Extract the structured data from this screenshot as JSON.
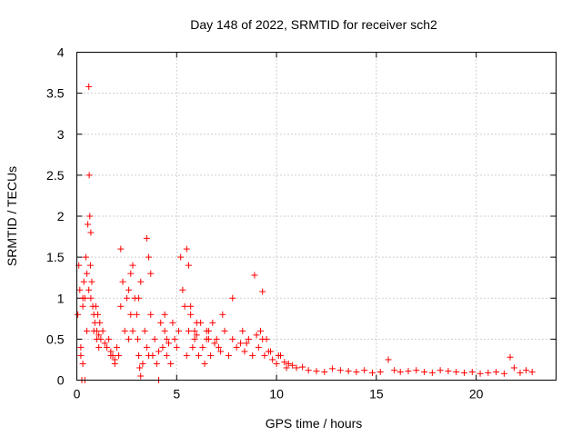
{
  "chart_data": {
    "type": "scatter",
    "title": "Day 148 of 2022, SRMTID for receiver sch2",
    "xlabel": "GPS time / hours",
    "ylabel": "SRMTID / TECUs",
    "xlim": [
      0,
      24
    ],
    "ylim": [
      0,
      4
    ],
    "x_ticks": [
      0,
      5,
      10,
      15,
      20
    ],
    "x_tick_labels": [
      "0",
      "5",
      "10",
      "15",
      "20"
    ],
    "y_ticks": [
      0,
      0.5,
      1,
      1.5,
      2,
      2.5,
      3,
      3.5,
      4
    ],
    "y_tick_labels": [
      "0",
      "0.5",
      "1",
      "1.5",
      "2",
      "2.5",
      "3",
      "3.5",
      "4"
    ],
    "grid": true,
    "marker": "+",
    "series": [
      {
        "name": "SRMTID",
        "color": "#ff0000",
        "x": [
          0.05,
          0.1,
          0.15,
          0.2,
          0.25,
          0.3,
          0.35,
          0.4,
          0.45,
          0.5,
          0.55,
          0.6,
          0.62,
          0.65,
          0.68,
          0.7,
          0.75,
          0.8,
          0.85,
          0.9,
          0.95,
          1.0,
          1.05,
          1.1,
          1.15,
          1.2,
          1.3,
          1.4,
          1.5,
          1.6,
          1.7,
          1.8,
          1.9,
          2.0,
          2.1,
          2.2,
          2.3,
          2.4,
          2.5,
          2.6,
          2.7,
          2.8,
          2.9,
          3.0,
          3.05,
          3.1,
          3.15,
          3.2,
          3.3,
          3.4,
          3.5,
          3.6,
          3.7,
          3.8,
          3.9,
          4.0,
          4.1,
          4.2,
          4.3,
          4.4,
          4.5,
          4.6,
          4.7,
          4.8,
          4.9,
          5.0,
          5.1,
          5.2,
          5.3,
          5.4,
          5.5,
          5.6,
          5.7,
          5.8,
          5.9,
          6.0,
          6.1,
          6.2,
          6.3,
          6.4,
          6.5,
          6.6,
          6.7,
          6.8,
          6.9,
          7.0,
          7.2,
          7.4,
          7.6,
          7.8,
          8.0,
          8.2,
          8.4,
          8.6,
          8.8,
          9.0,
          9.1,
          9.2,
          9.3,
          9.4,
          9.6,
          9.8,
          10.0,
          10.2,
          10.4,
          10.6,
          10.8,
          11.0,
          11.3,
          11.6,
          12.0,
          12.4,
          12.8,
          13.2,
          13.6,
          14.0,
          14.4,
          14.8,
          15.2,
          15.6,
          15.9,
          16.2,
          16.6,
          17.0,
          17.4,
          17.8,
          18.2,
          18.6,
          19.0,
          19.4,
          19.8,
          20.2,
          20.6,
          21.0,
          21.4,
          21.7,
          21.9,
          22.2,
          22.5,
          22.8,
          0.3,
          0.5,
          0.6,
          0.7,
          2.2,
          3.1,
          3.2,
          4.1,
          5.5,
          5.6,
          5.7,
          7.8,
          8.9,
          9.3,
          3.5,
          3.6,
          3.7,
          0.2,
          0.3,
          0.4,
          1.0,
          1.1,
          4.4,
          4.5,
          5.9,
          6.0,
          6.5,
          6.6,
          7.1,
          7.3,
          8.3,
          8.5,
          9.5,
          9.7,
          10.1,
          10.5,
          2.6,
          2.7,
          2.8,
          1.9,
          1.7,
          0.85
        ],
        "y": [
          0.8,
          1.4,
          1.1,
          0.3,
          0.0,
          0.9,
          1.2,
          1.0,
          1.5,
          0.6,
          1.9,
          3.58,
          2.5,
          2.0,
          1.4,
          1.8,
          1.2,
          0.9,
          0.8,
          0.7,
          0.9,
          0.6,
          0.8,
          0.55,
          0.7,
          0.5,
          0.6,
          0.45,
          0.4,
          0.5,
          0.35,
          0.3,
          0.25,
          0.4,
          0.3,
          0.9,
          1.2,
          0.6,
          1.0,
          1.1,
          1.3,
          1.4,
          1.0,
          0.8,
          0.5,
          0.3,
          0.15,
          0.05,
          0.2,
          0.6,
          0.4,
          0.3,
          0.8,
          0.3,
          0.5,
          0.2,
          0.35,
          0.7,
          0.4,
          0.6,
          0.3,
          0.45,
          0.2,
          0.7,
          0.5,
          0.4,
          0.6,
          1.5,
          1.1,
          0.9,
          0.3,
          0.6,
          0.8,
          0.4,
          0.5,
          0.55,
          0.3,
          0.7,
          0.4,
          0.2,
          0.6,
          0.5,
          0.3,
          0.7,
          0.45,
          0.5,
          0.35,
          0.6,
          0.3,
          0.5,
          0.4,
          0.45,
          0.35,
          0.5,
          0.3,
          0.55,
          0.4,
          0.6,
          0.5,
          0.3,
          0.35,
          0.25,
          0.2,
          0.3,
          0.22,
          0.2,
          0.18,
          0.15,
          0.16,
          0.12,
          0.11,
          0.1,
          0.14,
          0.12,
          0.11,
          0.1,
          0.12,
          0.09,
          0.1,
          0.25,
          0.12,
          0.1,
          0.11,
          0.12,
          0.1,
          0.09,
          0.12,
          0.11,
          0.1,
          0.09,
          0.1,
          0.08,
          0.09,
          0.1,
          0.08,
          0.28,
          0.15,
          0.09,
          0.12,
          0.1,
          1.0,
          1.3,
          1.1,
          1.0,
          1.6,
          1.0,
          1.2,
          0.0,
          1.6,
          1.4,
          0.9,
          1.0,
          1.28,
          1.08,
          1.73,
          1.5,
          1.3,
          0.4,
          0.2,
          0.0,
          0.5,
          0.4,
          0.8,
          0.5,
          0.6,
          0.7,
          0.5,
          0.6,
          0.4,
          0.8,
          0.6,
          0.45,
          0.5,
          0.35,
          0.3,
          0.15,
          0.5,
          0.8,
          0.6,
          0.2,
          0.3,
          0.6
        ]
      }
    ]
  }
}
